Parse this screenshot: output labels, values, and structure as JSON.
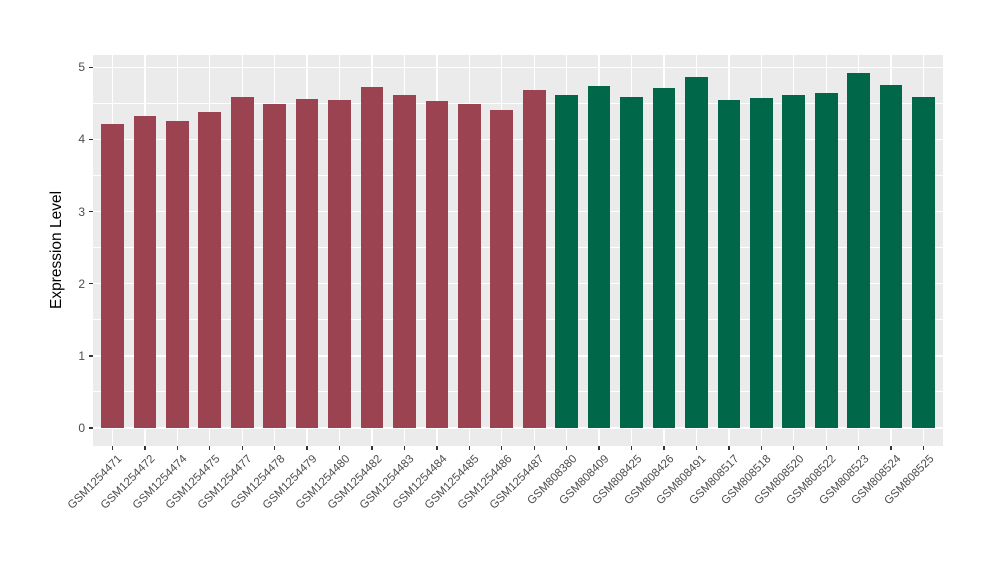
{
  "chart_data": {
    "type": "bar",
    "title": "",
    "xlabel": "",
    "ylabel": "Expression Level",
    "ylim": [
      0,
      5
    ],
    "yticks": [
      "0",
      "1",
      "2",
      "3",
      "4",
      "5"
    ],
    "grid": "on",
    "legend_position": "none",
    "panel_background": "#ebebeb",
    "gridline_color": "#ffffff",
    "group_colors": {
      "group1": "#9c4351",
      "group2": "#006849"
    },
    "categories": [
      "GSM1254471",
      "GSM1254472",
      "GSM1254474",
      "GSM1254475",
      "GSM1254477",
      "GSM1254478",
      "GSM1254479",
      "GSM1254480",
      "GSM1254482",
      "GSM1254483",
      "GSM1254484",
      "GSM1254485",
      "GSM1254486",
      "GSM1254487",
      "GSM808380",
      "GSM808409",
      "GSM808425",
      "GSM808426",
      "GSM808491",
      "GSM808517",
      "GSM808518",
      "GSM808520",
      "GSM808522",
      "GSM808523",
      "GSM808524",
      "GSM808525"
    ],
    "values": [
      4.21,
      4.32,
      4.26,
      4.38,
      4.59,
      4.49,
      4.56,
      4.54,
      4.73,
      4.61,
      4.53,
      4.49,
      4.41,
      4.69,
      4.62,
      4.74,
      4.59,
      4.71,
      4.87,
      4.55,
      4.57,
      4.62,
      4.65,
      4.92,
      4.76,
      4.59
    ],
    "groups": [
      "group1",
      "group1",
      "group1",
      "group1",
      "group1",
      "group1",
      "group1",
      "group1",
      "group1",
      "group1",
      "group1",
      "group1",
      "group1",
      "group1",
      "group2",
      "group2",
      "group2",
      "group2",
      "group2",
      "group2",
      "group2",
      "group2",
      "group2",
      "group2",
      "group2",
      "group2"
    ]
  }
}
